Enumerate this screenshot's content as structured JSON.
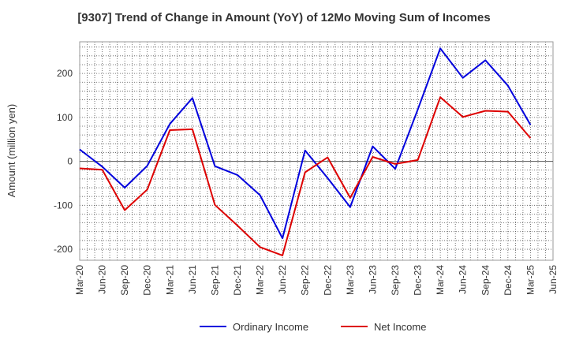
{
  "chart_data": {
    "type": "line",
    "title": "[9307]  Trend of Change in Amount (YoY) of 12Mo Moving Sum of Incomes",
    "xlabel": "",
    "ylabel": "Amount (million yen)",
    "ylim": [
      -225,
      272
    ],
    "yticks": [
      -200,
      -100,
      0,
      100,
      200
    ],
    "grid": true,
    "legend_position": "bottom",
    "categories": [
      "Mar-20",
      "Jun-20",
      "Sep-20",
      "Dec-20",
      "Mar-21",
      "Jun-21",
      "Sep-21",
      "Dec-21",
      "Mar-22",
      "Jun-22",
      "Sep-22",
      "Dec-22",
      "Mar-23",
      "Jun-23",
      "Sep-23",
      "Dec-23",
      "Mar-24",
      "Jun-24",
      "Sep-24",
      "Dec-24",
      "Mar-25",
      "Jun-25"
    ],
    "series": [
      {
        "name": "Ordinary Income",
        "color": "#0000dd",
        "values": [
          27,
          -12,
          -60,
          -10,
          85,
          144,
          -11,
          -31,
          -77,
          -175,
          25,
          -38,
          -104,
          34,
          -17,
          118,
          257,
          190,
          230,
          172,
          83,
          null
        ]
      },
      {
        "name": "Net Income",
        "color": "#dd0000",
        "values": [
          -16,
          -19,
          -111,
          -64,
          71,
          73,
          -99,
          -146,
          -195,
          -214,
          -25,
          9,
          -83,
          10,
          -6,
          3,
          146,
          101,
          115,
          113,
          53,
          null
        ]
      }
    ]
  }
}
